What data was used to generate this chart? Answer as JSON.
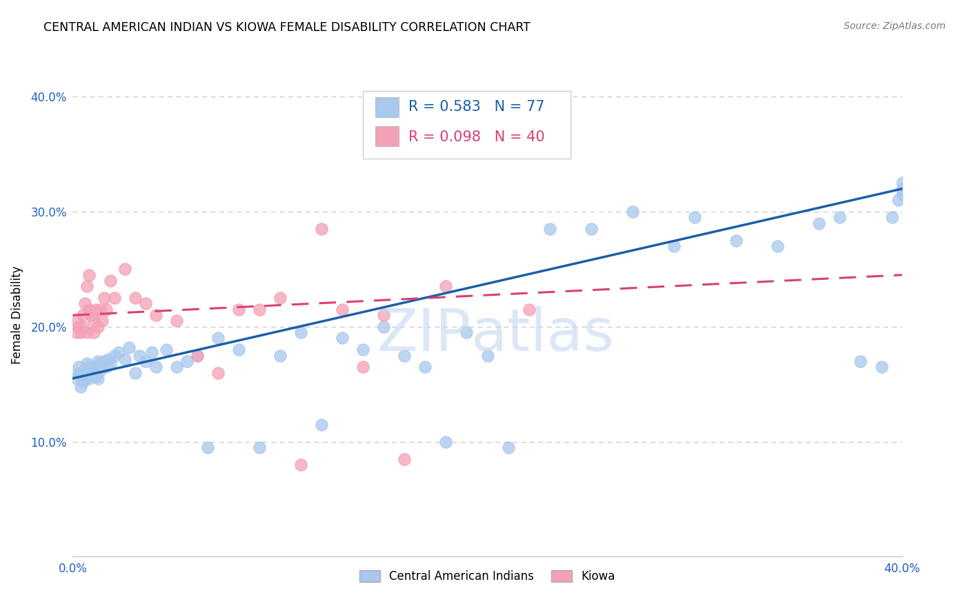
{
  "title": "CENTRAL AMERICAN INDIAN VS KIOWA FEMALE DISABILITY CORRELATION CHART",
  "source": "Source: ZipAtlas.com",
  "ylabel": "Female Disability",
  "xlim": [
    0.0,
    0.4
  ],
  "ylim": [
    0.0,
    0.42
  ],
  "yticks": [
    0.1,
    0.2,
    0.3,
    0.4
  ],
  "ytick_labels": [
    "10.0%",
    "20.0%",
    "30.0%",
    "40.0%"
  ],
  "xticks": [
    0.0,
    0.1,
    0.2,
    0.3,
    0.4
  ],
  "xtick_labels": [
    "0.0%",
    "",
    "",
    "",
    "40.0%"
  ],
  "blue_R": 0.583,
  "blue_N": 77,
  "pink_R": 0.098,
  "pink_N": 40,
  "blue_color": "#A8C8EE",
  "pink_color": "#F4A0B5",
  "blue_line_color": "#1A5FA8",
  "pink_line_color": "#D94070",
  "background_color": "#FFFFFF",
  "grid_color": "#CCCCCC",
  "blue_x": [
    0.002,
    0.003,
    0.003,
    0.004,
    0.004,
    0.005,
    0.005,
    0.005,
    0.006,
    0.006,
    0.006,
    0.007,
    0.007,
    0.007,
    0.008,
    0.008,
    0.008,
    0.009,
    0.009,
    0.01,
    0.01,
    0.011,
    0.011,
    0.012,
    0.012,
    0.013,
    0.013,
    0.014,
    0.015,
    0.016,
    0.017,
    0.018,
    0.02,
    0.022,
    0.025,
    0.027,
    0.03,
    0.032,
    0.035,
    0.038,
    0.04,
    0.045,
    0.05,
    0.055,
    0.06,
    0.065,
    0.07,
    0.08,
    0.09,
    0.1,
    0.11,
    0.12,
    0.13,
    0.14,
    0.15,
    0.16,
    0.17,
    0.18,
    0.19,
    0.2,
    0.21,
    0.23,
    0.25,
    0.27,
    0.29,
    0.3,
    0.32,
    0.34,
    0.36,
    0.37,
    0.38,
    0.39,
    0.395,
    0.398,
    0.4,
    0.4,
    0.4
  ],
  "blue_y": [
    0.155,
    0.165,
    0.16,
    0.148,
    0.158,
    0.152,
    0.16,
    0.155,
    0.158,
    0.162,
    0.155,
    0.163,
    0.158,
    0.168,
    0.155,
    0.16,
    0.165,
    0.162,
    0.158,
    0.16,
    0.165,
    0.157,
    0.162,
    0.17,
    0.155,
    0.168,
    0.162,
    0.165,
    0.17,
    0.165,
    0.172,
    0.168,
    0.175,
    0.178,
    0.172,
    0.182,
    0.16,
    0.175,
    0.17,
    0.178,
    0.165,
    0.18,
    0.165,
    0.17,
    0.175,
    0.095,
    0.19,
    0.18,
    0.095,
    0.175,
    0.195,
    0.115,
    0.19,
    0.18,
    0.2,
    0.175,
    0.165,
    0.1,
    0.195,
    0.175,
    0.095,
    0.285,
    0.285,
    0.3,
    0.27,
    0.295,
    0.275,
    0.27,
    0.29,
    0.295,
    0.17,
    0.165,
    0.295,
    0.31,
    0.32,
    0.315,
    0.325
  ],
  "pink_x": [
    0.002,
    0.002,
    0.003,
    0.004,
    0.005,
    0.005,
    0.006,
    0.007,
    0.007,
    0.008,
    0.008,
    0.009,
    0.01,
    0.01,
    0.011,
    0.012,
    0.013,
    0.014,
    0.015,
    0.016,
    0.018,
    0.02,
    0.025,
    0.03,
    0.035,
    0.04,
    0.05,
    0.06,
    0.07,
    0.08,
    0.09,
    0.1,
    0.11,
    0.12,
    0.13,
    0.14,
    0.15,
    0.16,
    0.18,
    0.22
  ],
  "pink_y": [
    0.195,
    0.205,
    0.2,
    0.195,
    0.2,
    0.21,
    0.22,
    0.195,
    0.235,
    0.215,
    0.245,
    0.21,
    0.195,
    0.205,
    0.215,
    0.2,
    0.215,
    0.205,
    0.225,
    0.215,
    0.24,
    0.225,
    0.25,
    0.225,
    0.22,
    0.21,
    0.205,
    0.175,
    0.16,
    0.215,
    0.215,
    0.225,
    0.08,
    0.285,
    0.215,
    0.165,
    0.21,
    0.085,
    0.235,
    0.215
  ],
  "blue_line_x0": 0.0,
  "blue_line_y0": 0.155,
  "blue_line_x1": 0.4,
  "blue_line_y1": 0.32,
  "pink_line_x0": 0.0,
  "pink_line_y0": 0.21,
  "pink_line_x1": 0.4,
  "pink_line_y1": 0.245
}
